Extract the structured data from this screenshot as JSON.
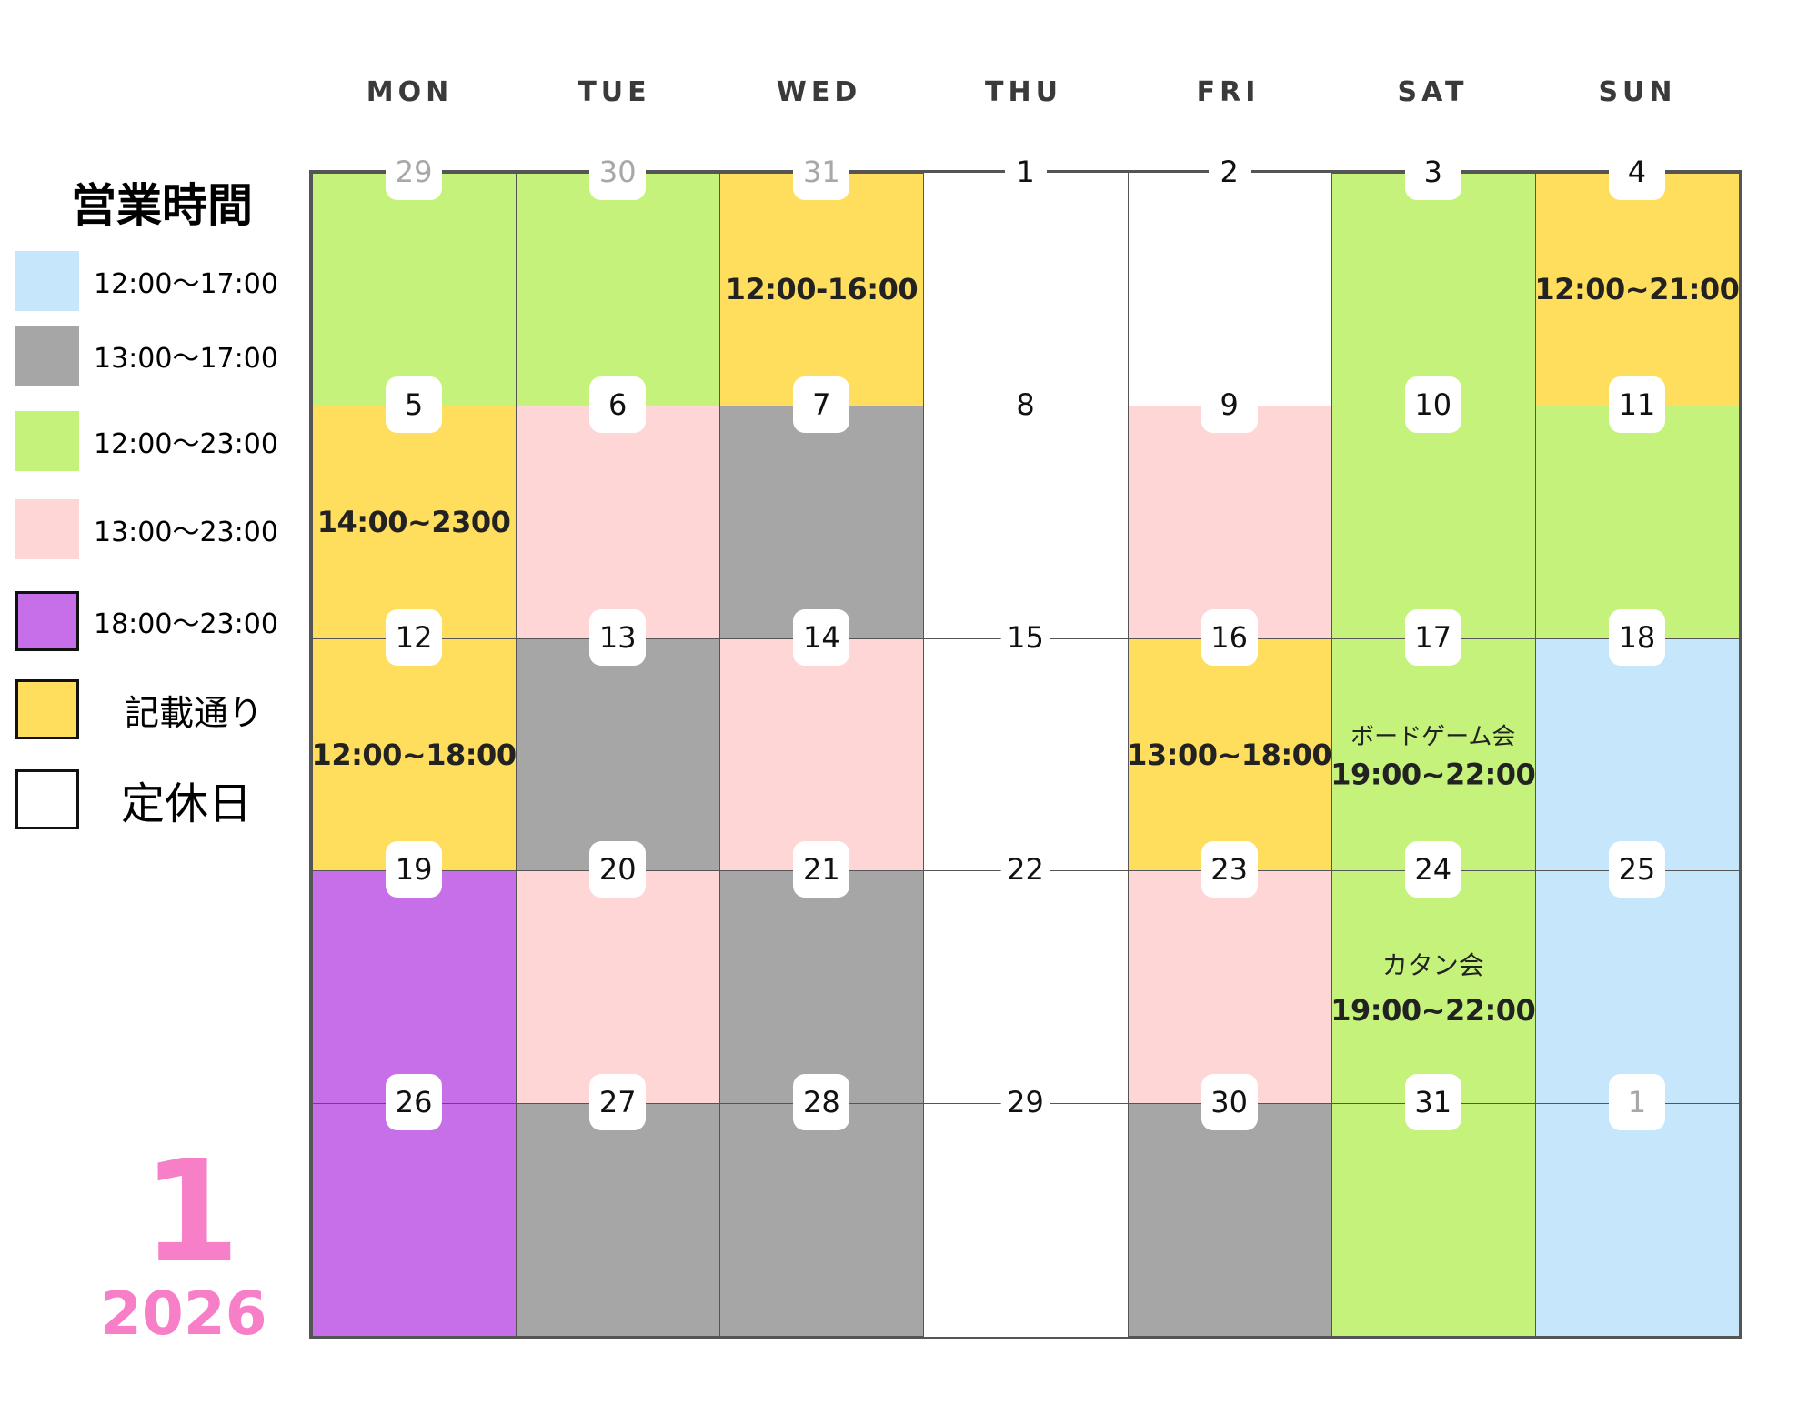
{
  "weekdays": [
    "MON",
    "TUE",
    "WED",
    "THU",
    "FRI",
    "SAT",
    "SUN"
  ],
  "legend": {
    "title": "営業時間",
    "items": [
      {
        "label": "12:00〜17:00",
        "color": "#c6e7fb"
      },
      {
        "label": "13:00〜17:00",
        "color": "#a6a6a6"
      },
      {
        "label": "12:00〜23:00",
        "color": "#c5f27a"
      },
      {
        "label": "13:00〜23:00",
        "color": "#ffd6d6"
      },
      {
        "label": "18:00〜23:00",
        "color": "#c76fe8"
      },
      {
        "label": "記載通り",
        "color": "#ffde5e"
      },
      {
        "label": "定休日",
        "color": "#ffffff"
      }
    ]
  },
  "month": "1",
  "year": "2026",
  "weeks": [
    [
      {
        "day": "29",
        "other_month": true,
        "color": "#c5f27a"
      },
      {
        "day": "30",
        "other_month": true,
        "color": "#c5f27a"
      },
      {
        "day": "31",
        "other_month": true,
        "color": "#ffde5e",
        "note": "12:00-16:00"
      },
      {
        "day": "1",
        "color": "#ffffff"
      },
      {
        "day": "2",
        "color": "#ffffff"
      },
      {
        "day": "3",
        "color": "#c5f27a"
      },
      {
        "day": "4",
        "color": "#ffde5e",
        "note": "12:00~21:00"
      }
    ],
    [
      {
        "day": "5",
        "color": "#ffde5e",
        "note": "14:00~2300"
      },
      {
        "day": "6",
        "color": "#ffd6d6"
      },
      {
        "day": "7",
        "color": "#a6a6a6"
      },
      {
        "day": "8",
        "color": "#ffffff"
      },
      {
        "day": "9",
        "color": "#ffd6d6"
      },
      {
        "day": "10",
        "color": "#c5f27a"
      },
      {
        "day": "11",
        "color": "#c5f27a"
      }
    ],
    [
      {
        "day": "12",
        "color": "#ffde5e",
        "note": "12:00~18:00"
      },
      {
        "day": "13",
        "color": "#a6a6a6"
      },
      {
        "day": "14",
        "color": "#ffd6d6"
      },
      {
        "day": "15",
        "color": "#ffffff"
      },
      {
        "day": "16",
        "color": "#ffde5e",
        "note": "13:00~18:00"
      },
      {
        "day": "17",
        "color": "#c5f27a",
        "event": "ボードゲーム会",
        "note": "19:00~22:00"
      },
      {
        "day": "18",
        "color": "#c6e7fb"
      }
    ],
    [
      {
        "day": "19",
        "color": "#c76fe8"
      },
      {
        "day": "20",
        "color": "#ffd6d6"
      },
      {
        "day": "21",
        "color": "#a6a6a6"
      },
      {
        "day": "22",
        "color": "#ffffff"
      },
      {
        "day": "23",
        "color": "#ffd6d6"
      },
      {
        "day": "24",
        "color": "#c5f27a",
        "event": "カタン会",
        "note": "19:00~22:00"
      },
      {
        "day": "25",
        "color": "#c6e7fb"
      }
    ],
    [
      {
        "day": "26",
        "color": "#c76fe8"
      },
      {
        "day": "27",
        "color": "#a6a6a6"
      },
      {
        "day": "28",
        "color": "#a6a6a6"
      },
      {
        "day": "29",
        "color": "#ffffff"
      },
      {
        "day": "30",
        "color": "#a6a6a6"
      },
      {
        "day": "31",
        "color": "#c5f27a"
      },
      {
        "day": "1",
        "other_month": true,
        "color": "#c6e7fb"
      }
    ]
  ]
}
